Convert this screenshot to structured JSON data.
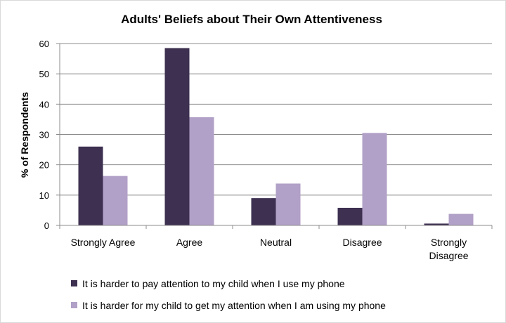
{
  "chart_data": {
    "type": "bar",
    "title": "Adults' Beliefs about Their Own Attentiveness",
    "xlabel": "",
    "ylabel": "% of Respondents",
    "ylim": [
      0,
      60
    ],
    "yticks": [
      0,
      10,
      20,
      30,
      40,
      50,
      60
    ],
    "grid": true,
    "legend_position": "bottom",
    "categories": [
      [
        "Strongly Agree"
      ],
      [
        "Agree"
      ],
      [
        "Neutral"
      ],
      [
        "Disagree"
      ],
      [
        "Strongly",
        "Disagree"
      ]
    ],
    "series": [
      {
        "name": "It is harder to pay attention to my child when I use my phone",
        "color": "#3d3050",
        "values": [
          26,
          58.5,
          9,
          5.8,
          0.6
        ]
      },
      {
        "name": "It is harder for my child to get my attention when I am using my phone",
        "color": "#b1a0c7",
        "values": [
          16.3,
          35.7,
          13.8,
          30.5,
          3.8
        ]
      }
    ]
  }
}
